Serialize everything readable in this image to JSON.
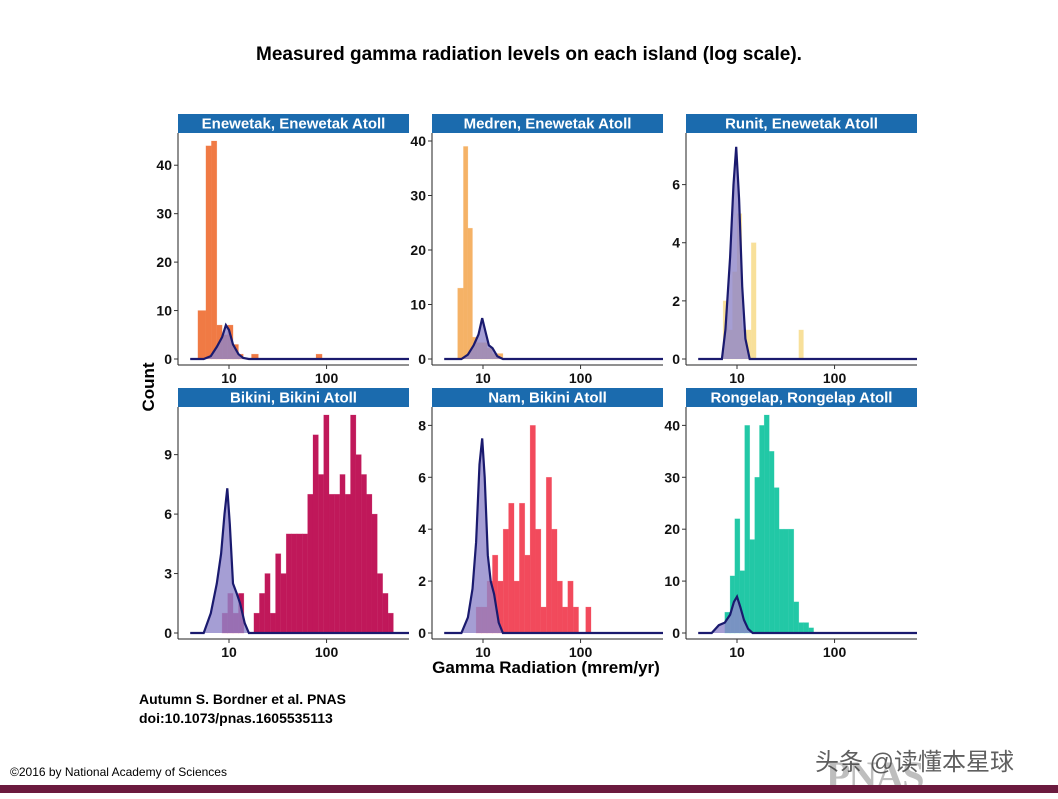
{
  "title": "Measured gamma radiation levels on each island (log scale).",
  "citation": {
    "line1": "Autumn S. Bordner et al. PNAS",
    "line2": "doi:10.1073/pnas.1605535113"
  },
  "copyright": "©2016 by National Academy of Sciences",
  "watermark": "头条 @读懂本星球",
  "logo_text": "PNAS",
  "colors": {
    "strip": "#1b6bae",
    "density_line": "#1a1a6e",
    "density_fill": "#8f86c9",
    "footer_bar": "#6b1a3e"
  },
  "chart_data": {
    "type": "bar",
    "x_scale": "log10",
    "xlabel": "Gamma Radiation (mrem/yr)",
    "ylabel": "Count",
    "xlim": [
      3,
      700
    ],
    "xticks": [
      10,
      100
    ],
    "xtick_labels": [
      "10",
      "100"
    ],
    "panels": [
      {
        "name": "Enewetak, Enewetak Atoll",
        "color": "#f07a44",
        "ylim": [
          0,
          45
        ],
        "yticks": [
          0,
          10,
          20,
          30,
          40
        ],
        "ytick_labels": [
          "0",
          "10",
          "20",
          "30",
          "40"
        ],
        "bins": [
          [
            4.8,
            5.8,
            10
          ],
          [
            5.8,
            6.6,
            44
          ],
          [
            6.6,
            7.5,
            45
          ],
          [
            7.5,
            8.5,
            7
          ],
          [
            8.5,
            9.7,
            5
          ],
          [
            9.7,
            11,
            7
          ],
          [
            11,
            12.5,
            3
          ],
          [
            12.5,
            14,
            1
          ],
          [
            17,
            20,
            1
          ],
          [
            78,
            90,
            1
          ]
        ],
        "density": [
          [
            4,
            0
          ],
          [
            5.5,
            0
          ],
          [
            6.5,
            0.6
          ],
          [
            7.5,
            2.5
          ],
          [
            8.5,
            4.5
          ],
          [
            9.3,
            7
          ],
          [
            10,
            6
          ],
          [
            11,
            3
          ],
          [
            12.5,
            1
          ],
          [
            14,
            0.2
          ],
          [
            16,
            0
          ],
          [
            700,
            0
          ]
        ]
      },
      {
        "name": "Medren, Enewetak Atoll",
        "color": "#f5b266",
        "ylim": [
          0,
          40
        ],
        "yticks": [
          0,
          10,
          20,
          30,
          40
        ],
        "ytick_labels": [
          "0",
          "10",
          "20",
          "30",
          "40"
        ],
        "bins": [
          [
            5.5,
            6.3,
            13
          ],
          [
            6.3,
            7,
            39
          ],
          [
            7,
            7.8,
            24
          ],
          [
            7.8,
            8.7,
            4
          ],
          [
            8.7,
            9.7,
            3
          ],
          [
            9.7,
            11,
            3
          ],
          [
            11,
            12.5,
            2
          ],
          [
            12.5,
            14,
            1
          ],
          [
            14,
            16,
            1
          ]
        ],
        "density": [
          [
            4,
            0
          ],
          [
            6,
            0
          ],
          [
            7,
            0.8
          ],
          [
            8,
            2.5
          ],
          [
            9,
            4.5
          ],
          [
            9.8,
            7.5
          ],
          [
            10.6,
            5
          ],
          [
            11.5,
            2.5
          ],
          [
            12.5,
            2
          ],
          [
            14,
            0.5
          ],
          [
            16,
            0
          ],
          [
            700,
            0
          ]
        ]
      },
      {
        "name": "Runit, Enewetak Atoll",
        "color": "#f8e09a",
        "ylim": [
          0,
          7.5
        ],
        "yticks": [
          0,
          2,
          4,
          6
        ],
        "ytick_labels": [
          "0",
          "2",
          "4",
          "6"
        ],
        "bins": [
          [
            7.2,
            8.1,
            2
          ],
          [
            8.1,
            9,
            1
          ],
          [
            9,
            10,
            3
          ],
          [
            10,
            11.2,
            5
          ],
          [
            11.2,
            12.5,
            1
          ],
          [
            12.5,
            14,
            1
          ],
          [
            14,
            15.7,
            4
          ],
          [
            43,
            48,
            1
          ]
        ],
        "density": [
          [
            4,
            0
          ],
          [
            7,
            0
          ],
          [
            7.6,
            1
          ],
          [
            8.5,
            3.5
          ],
          [
            9.2,
            6
          ],
          [
            9.8,
            7.3
          ],
          [
            10.5,
            5.5
          ],
          [
            11.3,
            2.5
          ],
          [
            12.2,
            0.7
          ],
          [
            13.5,
            0
          ],
          [
            700,
            0
          ]
        ]
      },
      {
        "name": "Bikini, Bikini Atoll",
        "color": "#c0185a",
        "ylim": [
          0,
          11
        ],
        "yticks": [
          0,
          3,
          6,
          9
        ],
        "ytick_labels": [
          "0",
          "3",
          "6",
          "9"
        ],
        "bins": [
          [
            8.5,
            9.7,
            1
          ],
          [
            9.7,
            11,
            2
          ],
          [
            11,
            12.5,
            1
          ],
          [
            12.5,
            14.2,
            2
          ],
          [
            18,
            20.5,
            1
          ],
          [
            20.5,
            23.3,
            2
          ],
          [
            23.3,
            26.4,
            3
          ],
          [
            26.4,
            30,
            1
          ],
          [
            30,
            34,
            4
          ],
          [
            34,
            38.6,
            3
          ],
          [
            38.6,
            43.8,
            5
          ],
          [
            43.8,
            49.7,
            5
          ],
          [
            49.7,
            56.4,
            5
          ],
          [
            56.4,
            64,
            5
          ],
          [
            64,
            72.6,
            7
          ],
          [
            72.6,
            82.4,
            10
          ],
          [
            82.4,
            93.5,
            8
          ],
          [
            93.5,
            106,
            11
          ],
          [
            106,
            120,
            7
          ],
          [
            120,
            137,
            7
          ],
          [
            137,
            155,
            8
          ],
          [
            155,
            176,
            7
          ],
          [
            176,
            200,
            11
          ],
          [
            200,
            227,
            9
          ],
          [
            227,
            257,
            8
          ],
          [
            257,
            292,
            7
          ],
          [
            292,
            331,
            6
          ],
          [
            331,
            376,
            3
          ],
          [
            376,
            427,
            2
          ],
          [
            427,
            484,
            1
          ]
        ],
        "density": [
          [
            4,
            0
          ],
          [
            5.5,
            0
          ],
          [
            6.5,
            1
          ],
          [
            7.5,
            2.5
          ],
          [
            8.3,
            4
          ],
          [
            9,
            6
          ],
          [
            9.6,
            7.3
          ],
          [
            10.2,
            5.5
          ],
          [
            11,
            2.5
          ],
          [
            12,
            2
          ],
          [
            13,
            1.5
          ],
          [
            14.5,
            0.5
          ],
          [
            16,
            0
          ],
          [
            700,
            0
          ]
        ]
      },
      {
        "name": "Nam, Bikini Atoll",
        "color": "#f24a5c",
        "ylim": [
          0,
          8.4
        ],
        "yticks": [
          0,
          2,
          4,
          6,
          8
        ],
        "ytick_labels": [
          "0",
          "2",
          "4",
          "6",
          "8"
        ],
        "bins": [
          [
            8.5,
            9.7,
            1
          ],
          [
            9.7,
            11,
            1
          ],
          [
            11,
            12.5,
            2
          ],
          [
            12.5,
            14.2,
            3
          ],
          [
            14.2,
            16.1,
            2
          ],
          [
            16.1,
            18.3,
            4
          ],
          [
            18.3,
            20.8,
            5
          ],
          [
            20.8,
            23.6,
            2
          ],
          [
            23.6,
            26.8,
            5
          ],
          [
            26.8,
            30.4,
            3
          ],
          [
            30.4,
            34.5,
            8
          ],
          [
            34.5,
            39.2,
            4
          ],
          [
            39.2,
            44.5,
            1
          ],
          [
            44.5,
            50.5,
            6
          ],
          [
            50.5,
            57.4,
            4
          ],
          [
            57.4,
            65.2,
            2
          ],
          [
            65.2,
            74,
            1
          ],
          [
            74,
            84,
            2
          ],
          [
            84,
            95.4,
            1
          ],
          [
            113,
            128,
            1
          ]
        ],
        "density": [
          [
            4,
            0
          ],
          [
            6,
            0
          ],
          [
            7,
            0.6
          ],
          [
            7.8,
            1.7
          ],
          [
            8.5,
            3.5
          ],
          [
            9.2,
            6.5
          ],
          [
            9.8,
            7.5
          ],
          [
            10.4,
            6
          ],
          [
            11.2,
            3
          ],
          [
            12,
            2
          ],
          [
            13,
            1.5
          ],
          [
            14.5,
            0.4
          ],
          [
            16,
            0
          ],
          [
            700,
            0
          ]
        ]
      },
      {
        "name": "Rongelap, Rongelap Atoll",
        "color": "#22c8a6",
        "ylim": [
          0,
          42
        ],
        "yticks": [
          0,
          10,
          20,
          30,
          40
        ],
        "ytick_labels": [
          "0",
          "10",
          "20",
          "30",
          "40"
        ],
        "bins": [
          [
            7.5,
            8.5,
            4
          ],
          [
            8.5,
            9.5,
            11
          ],
          [
            9.5,
            10.7,
            22
          ],
          [
            10.7,
            12,
            12
          ],
          [
            12,
            13.5,
            40
          ],
          [
            13.5,
            15.2,
            18
          ],
          [
            15.2,
            17,
            30
          ],
          [
            17,
            19,
            40
          ],
          [
            19,
            21.4,
            42
          ],
          [
            21.4,
            24,
            35
          ],
          [
            24,
            27,
            28
          ],
          [
            27,
            30.3,
            20
          ],
          [
            30.3,
            34,
            20
          ],
          [
            34,
            38.2,
            20
          ],
          [
            38.2,
            43,
            6
          ],
          [
            43,
            48.3,
            2
          ],
          [
            48.3,
            54.3,
            2
          ],
          [
            54.3,
            61,
            1
          ]
        ],
        "density": [
          [
            4,
            0
          ],
          [
            5.5,
            0
          ],
          [
            6.5,
            1.5
          ],
          [
            7.5,
            2
          ],
          [
            8.5,
            3.5
          ],
          [
            9.3,
            6
          ],
          [
            10,
            7
          ],
          [
            10.8,
            5
          ],
          [
            11.8,
            2.5
          ],
          [
            13,
            0.8
          ],
          [
            14.5,
            0
          ],
          [
            700,
            0
          ]
        ]
      }
    ]
  }
}
